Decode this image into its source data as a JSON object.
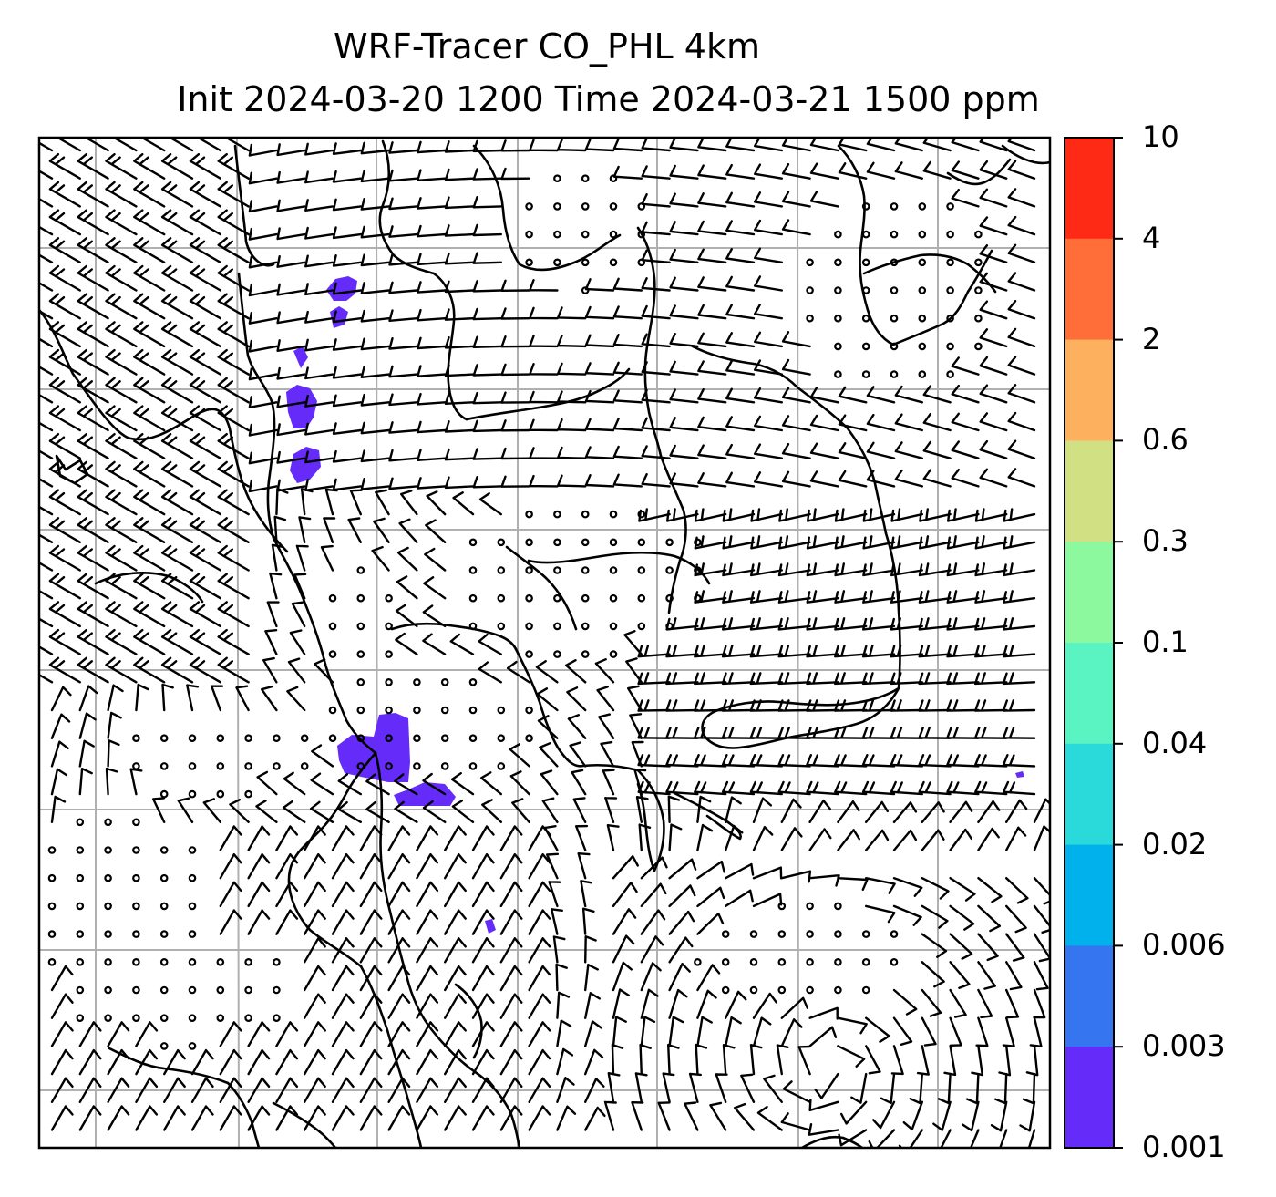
{
  "title_line1": "WRF-Tracer CO_PHL 4km",
  "title_line2": "Init 2024-03-20 1200 Time 2024-03-21 1500 ppm",
  "colorbar": {
    "labels": [
      "10",
      "4",
      "2",
      "0.6",
      "0.3",
      "0.1",
      "0.04",
      "0.02",
      "0.006",
      "0.003",
      "0.001"
    ],
    "colors": [
      "#ff2a15",
      "#ff6d38",
      "#fdb05e",
      "#d2e084",
      "#8cf99e",
      "#59f4c2",
      "#2ad9da",
      "#00b1ec",
      "#3576f0",
      "#652cf9"
    ]
  },
  "tracer_color": "#652cf9",
  "colors": {
    "gridline": "#b0b0b0",
    "coastline": "#000000",
    "barb": "#000000"
  }
}
